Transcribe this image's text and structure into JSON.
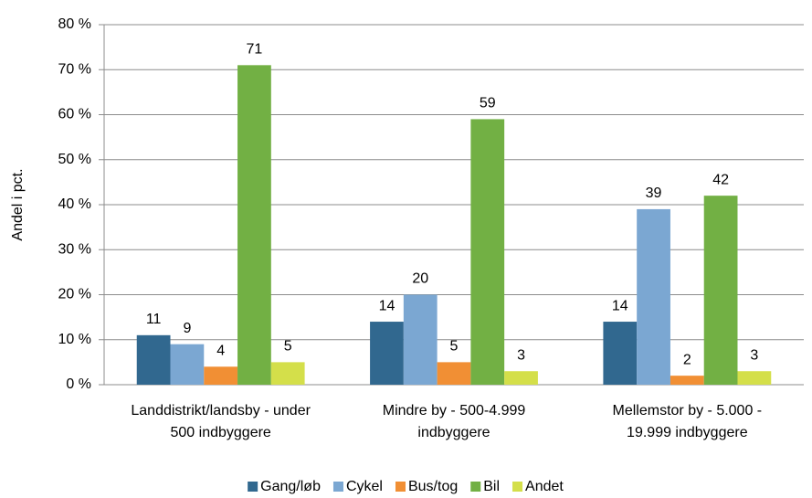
{
  "chart_data": {
    "type": "bar",
    "y_label": "Andel i pct.",
    "categories": [
      "Landdistrikt/landsby - under 500 indbyggere",
      "Mindre by - 500-4.999 indbyggere",
      "Mellemstor by - 5.000 - 19.999 indbyggere"
    ],
    "series": [
      {
        "name": "Gang/løb",
        "color": "#31688f",
        "values": [
          11,
          14,
          14
        ]
      },
      {
        "name": "Cykel",
        "color": "#7ba7d2",
        "values": [
          9,
          20,
          39
        ]
      },
      {
        "name": "Bus/tog",
        "color": "#f18f34",
        "values": [
          4,
          5,
          2
        ]
      },
      {
        "name": "Bil",
        "color": "#72b044",
        "values": [
          71,
          59,
          42
        ]
      },
      {
        "name": "Andet",
        "color": "#d4df4a",
        "values": [
          5,
          3,
          3
        ]
      }
    ],
    "ylim": [
      0,
      80
    ],
    "yticks": [
      {
        "value": 0,
        "label": "0 %"
      },
      {
        "value": 10,
        "label": "10 %"
      },
      {
        "value": 20,
        "label": "20 %"
      },
      {
        "value": 30,
        "label": "30 %"
      },
      {
        "value": 40,
        "label": "40 %"
      },
      {
        "value": 50,
        "label": "50 %"
      },
      {
        "value": 60,
        "label": "60 %"
      },
      {
        "value": 70,
        "label": "70 %"
      },
      {
        "value": 80,
        "label": "80 %"
      }
    ],
    "grid": true,
    "legend": "bottom"
  }
}
